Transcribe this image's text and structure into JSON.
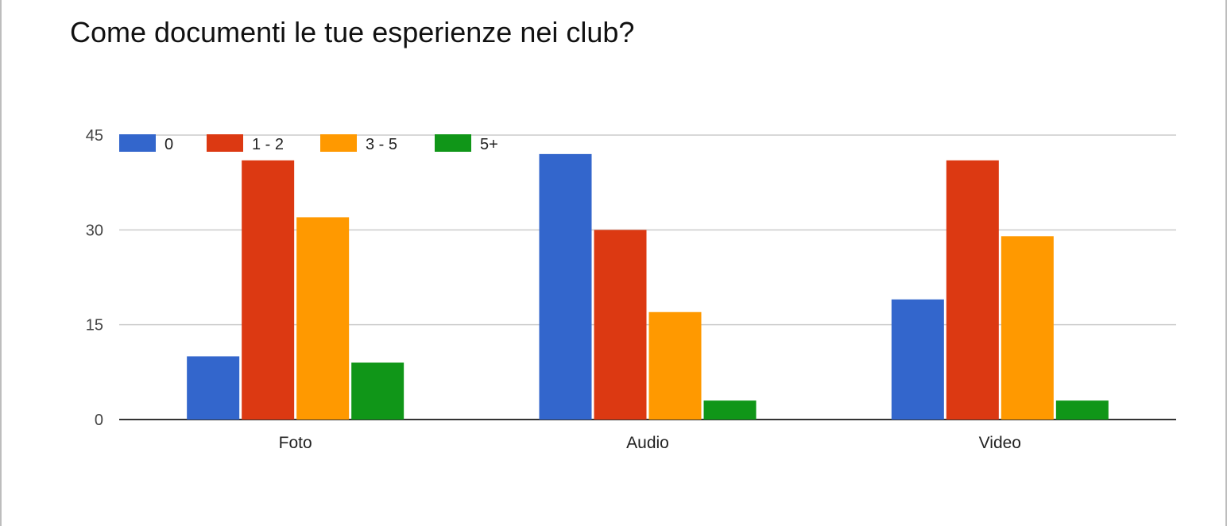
{
  "chart_data": {
    "type": "bar",
    "title": "Come documenti le tue esperienze nei club?",
    "xlabel": "",
    "ylabel": "",
    "categories": [
      "Foto",
      "Audio",
      "Video"
    ],
    "series": [
      {
        "name": "0",
        "color": "#3366cc",
        "values": [
          10,
          42,
          19
        ]
      },
      {
        "name": "1 - 2",
        "color": "#dc3912",
        "values": [
          41,
          30,
          41
        ]
      },
      {
        "name": "3 - 5",
        "color": "#ff9900",
        "values": [
          32,
          17,
          29
        ]
      },
      {
        "name": "5+",
        "color": "#109618",
        "values": [
          9,
          3,
          3
        ]
      }
    ],
    "ylim": [
      0,
      45
    ],
    "yticks": [
      "0",
      "15",
      "30",
      "45"
    ],
    "grid": true,
    "legend_position": "top-left"
  }
}
